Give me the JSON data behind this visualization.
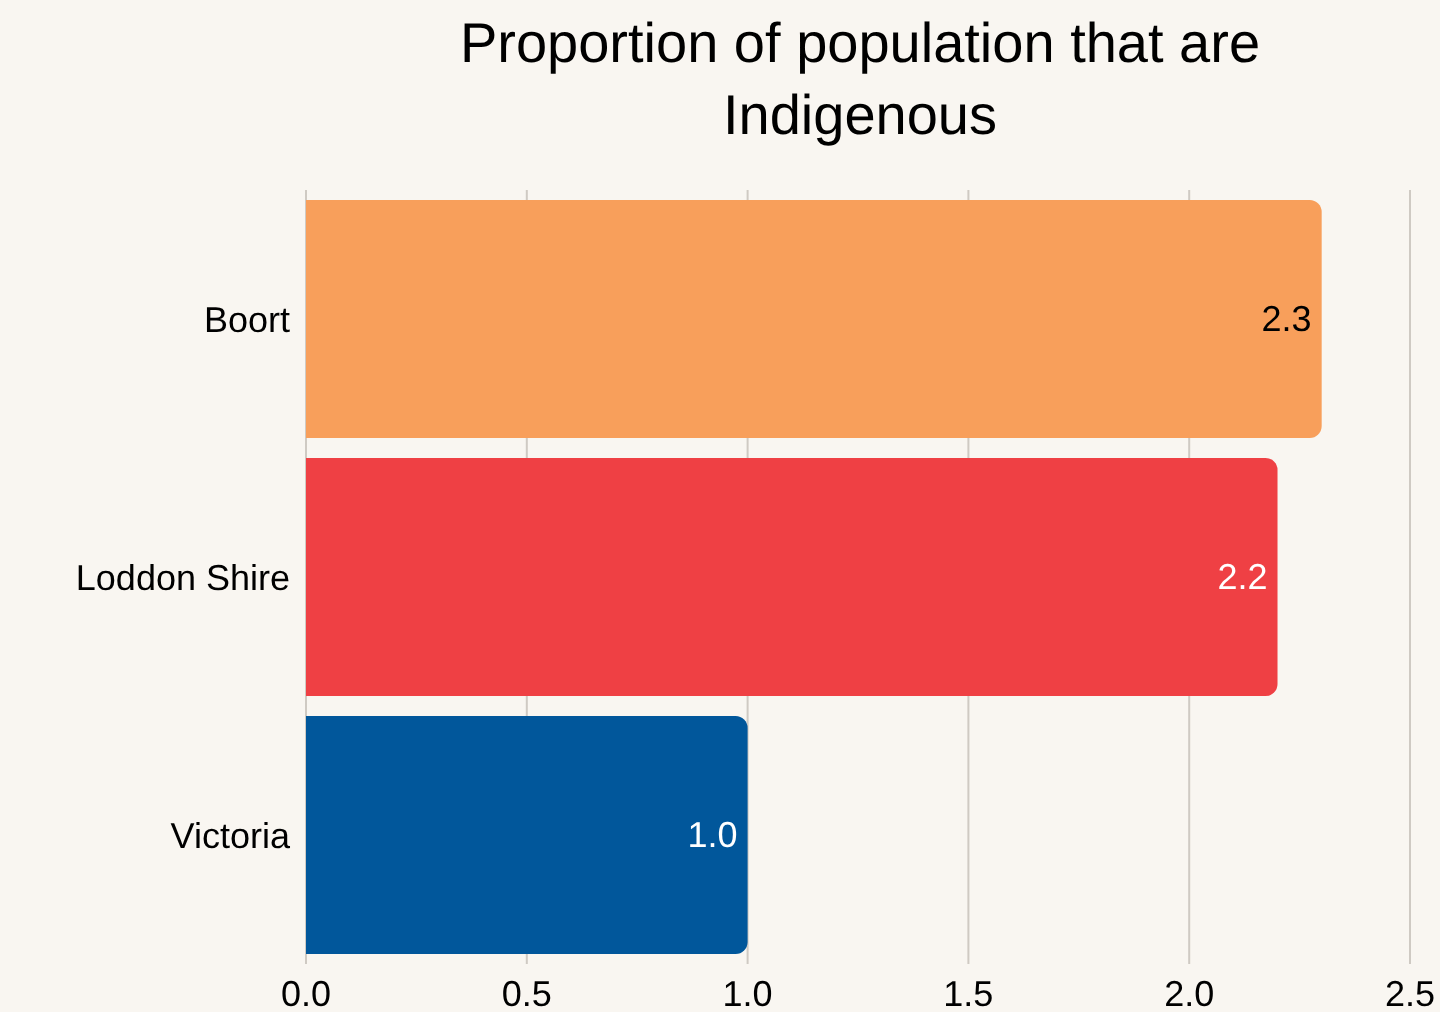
{
  "chart_data": {
    "type": "bar",
    "orientation": "horizontal",
    "title": "Proportion of population that are Indigenous",
    "categories": [
      "Boort",
      "Loddon Shire",
      "Victoria"
    ],
    "values": [
      2.3,
      2.2,
      1.0
    ],
    "colors": [
      "#f89f5b",
      "#ef4044",
      "#01579b"
    ],
    "xlim": [
      0,
      2.5
    ],
    "xticks": [
      {
        "value": 0,
        "label": "0.0"
      },
      0.5,
      {
        "value": 1,
        "label": "1.0"
      },
      1.5,
      {
        "value": 2,
        "label": "2.0"
      },
      2.5
    ],
    "value_labels": [
      "2.3",
      "2.2",
      "1.0"
    ],
    "grid": "x",
    "legend": false
  }
}
